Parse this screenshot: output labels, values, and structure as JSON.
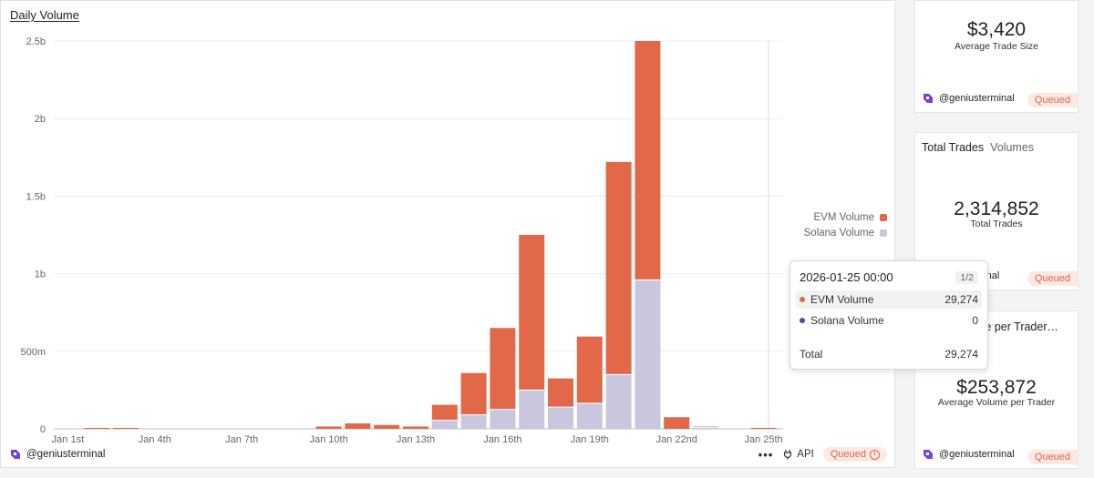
{
  "chart_data": {
    "type": "bar",
    "stacked": true,
    "title": "Daily Volume",
    "categories": [
      "Jan 1st",
      "Jan 2nd",
      "Jan 3rd",
      "Jan 4th",
      "Jan 5th",
      "Jan 6th",
      "Jan 7th",
      "Jan 8th",
      "Jan 9th",
      "Jan 10th",
      "Jan 11th",
      "Jan 12th",
      "Jan 13th",
      "Jan 14th",
      "Jan 15th",
      "Jan 16th",
      "Jan 17th",
      "Jan 18th",
      "Jan 19th",
      "Jan 20th",
      "Jan 21st",
      "Jan 22nd",
      "Jan 23rd",
      "Jan 24th",
      "Jan 25th"
    ],
    "x_tick_labels": [
      "Jan 1st",
      "Jan 4th",
      "Jan 7th",
      "Jan 10th",
      "Jan 13th",
      "Jan 16th",
      "Jan 19th",
      "Jan 22nd",
      "Jan 25th"
    ],
    "x_tick_indices": [
      0,
      3,
      6,
      9,
      12,
      15,
      18,
      21,
      24
    ],
    "y_tick_labels": [
      "0",
      "500m",
      "1b",
      "1.5b",
      "2b",
      "2.5b"
    ],
    "y_tick_values": [
      0,
      500000000,
      1000000000,
      1500000000,
      2000000000,
      2500000000
    ],
    "ylim": [
      0,
      2500000000
    ],
    "series": [
      {
        "name": "Solana Volume",
        "color": "#c9c7dd",
        "values": [
          0,
          0,
          0,
          0,
          0,
          0,
          0,
          0,
          0,
          0,
          0,
          0,
          0,
          55000000,
          90000000,
          125000000,
          250000000,
          140000000,
          165000000,
          350000000,
          960000000,
          0,
          10000000,
          0,
          0
        ]
      },
      {
        "name": "EVM Volume",
        "color": "#e2684a",
        "values": [
          0,
          3000000,
          2000000,
          0,
          0,
          0,
          0,
          0,
          0,
          15000000,
          35000000,
          25000000,
          15000000,
          100000000,
          270000000,
          525000000,
          1000000000,
          185000000,
          430000000,
          1370000000,
          1540000000,
          75000000,
          5000000,
          0,
          29274
        ]
      }
    ],
    "legend": [
      "EVM Volume",
      "Solana Volume"
    ],
    "legend_position": "right",
    "grid": true
  },
  "main": {
    "title": "Daily Volume",
    "author": "@geniusterminal",
    "menu_label": "•••",
    "api_label": "API",
    "status": "Queued",
    "legend_evm": "EVM Volume",
    "legend_solana": "Solana Volume"
  },
  "tooltip": {
    "date": "2026-01-25 00:00",
    "page": "1/2",
    "rows": [
      {
        "name": "EVM Volume",
        "value": "29,274",
        "color": "#e2684a"
      },
      {
        "name": "Solana Volume",
        "value": "0",
        "color": "#5b4a96"
      }
    ],
    "total_label": "Total",
    "total_value": "29,274"
  },
  "cards": {
    "avg_trade": {
      "value": "$3,420",
      "label": "Average Trade Size",
      "author": "@geniusterminal",
      "status": "Queued"
    },
    "total_trades": {
      "tab_active": "Total Trades",
      "tab_inactive": "Volumes",
      "value": "2,314,852",
      "label": "Total Trades",
      "author_partial": "minal",
      "status": "Queued"
    },
    "avg_volume": {
      "title_partial": "me per Trader…",
      "value": "$253,872",
      "label": "Average Volume per Trader",
      "author": "@geniusterminal",
      "status": "Queued"
    }
  }
}
